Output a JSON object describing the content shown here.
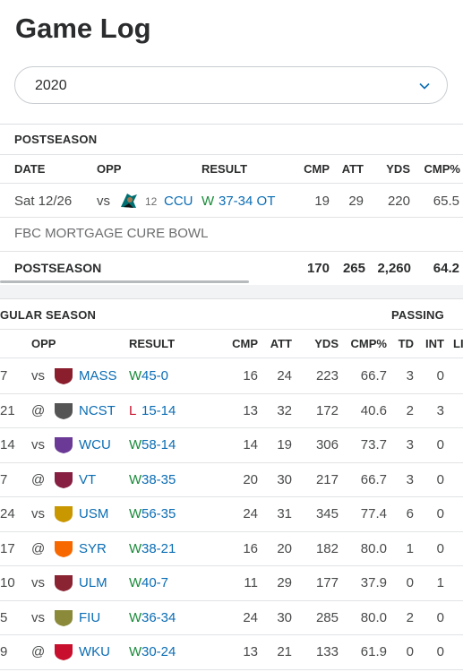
{
  "page_title": "Game Log",
  "season_select": {
    "value": "2020"
  },
  "postseason": {
    "section_label": "POSTSEASON",
    "headers": {
      "date": "DATE",
      "opp": "OPP",
      "result": "RESULT",
      "cmp": "CMP",
      "att": "ATT",
      "yds": "YDS",
      "cmp_pct": "CMP%"
    },
    "game": {
      "date": "Sat 12/26",
      "loc": "vs",
      "rank": "12",
      "opp": "CCU",
      "wl": "W",
      "score": "37-34 OT",
      "cmp": "19",
      "att": "29",
      "yds": "220",
      "cmp_pct": "65.5"
    },
    "bowl": "FBC MORTGAGE CURE BOWL",
    "totals": {
      "label": "POSTSEASON",
      "cmp": "170",
      "att": "265",
      "yds": "2,260",
      "cmp_pct": "64.2"
    }
  },
  "regular": {
    "section_label": "GULAR SEASON",
    "group_label": "PASSING",
    "headers": {
      "opp": "OPP",
      "result": "RESULT",
      "cmp": "CMP",
      "att": "ATT",
      "yds": "YDS",
      "cmp_pct": "CMP%",
      "td": "TD",
      "int": "INT",
      "extra": "LI"
    },
    "rows": [
      {
        "date": "7",
        "loc": "vs",
        "opp": "MASS",
        "wl": "W",
        "score": "45-0",
        "cmp": "16",
        "att": "24",
        "yds": "223",
        "cmp_pct": "66.7",
        "td": "3",
        "int": "0",
        "logo_color": "#8b1e2d"
      },
      {
        "date": "21",
        "loc": "@",
        "opp": "NCST",
        "wl": "L",
        "score": "15-14",
        "cmp": "13",
        "att": "32",
        "yds": "172",
        "cmp_pct": "40.6",
        "td": "2",
        "int": "3",
        "logo_color": "#555555"
      },
      {
        "date": "14",
        "loc": "vs",
        "opp": "WCU",
        "wl": "W",
        "score": "58-14",
        "cmp": "14",
        "att": "19",
        "yds": "306",
        "cmp_pct": "73.7",
        "td": "3",
        "int": "0",
        "logo_color": "#6a3a96"
      },
      {
        "date": "7",
        "loc": "@",
        "opp": "VT",
        "wl": "W",
        "score": "38-35",
        "cmp": "20",
        "att": "30",
        "yds": "217",
        "cmp_pct": "66.7",
        "td": "3",
        "int": "0",
        "logo_color": "#861f41"
      },
      {
        "date": "24",
        "loc": "vs",
        "opp": "USM",
        "wl": "W",
        "score": "56-35",
        "cmp": "24",
        "att": "31",
        "yds": "345",
        "cmp_pct": "77.4",
        "td": "6",
        "int": "0",
        "logo_color": "#c99700"
      },
      {
        "date": "17",
        "loc": "@",
        "opp": "SYR",
        "wl": "W",
        "score": "38-21",
        "cmp": "16",
        "att": "20",
        "yds": "182",
        "cmp_pct": "80.0",
        "td": "1",
        "int": "0",
        "logo_color": "#f76900"
      },
      {
        "date": "10",
        "loc": "vs",
        "opp": "ULM",
        "wl": "W",
        "score": "40-7",
        "cmp": "11",
        "att": "29",
        "yds": "177",
        "cmp_pct": "37.9",
        "td": "0",
        "int": "1",
        "logo_color": "#8a2432"
      },
      {
        "date": "5",
        "loc": "vs",
        "opp": "FIU",
        "wl": "W",
        "score": "36-34",
        "cmp": "24",
        "att": "30",
        "yds": "285",
        "cmp_pct": "80.0",
        "td": "2",
        "int": "0",
        "logo_color": "#8a8a3a"
      },
      {
        "date": "9",
        "loc": "@",
        "opp": "WKU",
        "wl": "W",
        "score": "30-24",
        "cmp": "13",
        "att": "21",
        "yds": "133",
        "cmp_pct": "61.9",
        "td": "0",
        "int": "0",
        "logo_color": "#c8102e"
      }
    ]
  },
  "colors": {
    "link": "#0b6db4",
    "win": "#1a8a3a",
    "loss": "#c8102e"
  }
}
